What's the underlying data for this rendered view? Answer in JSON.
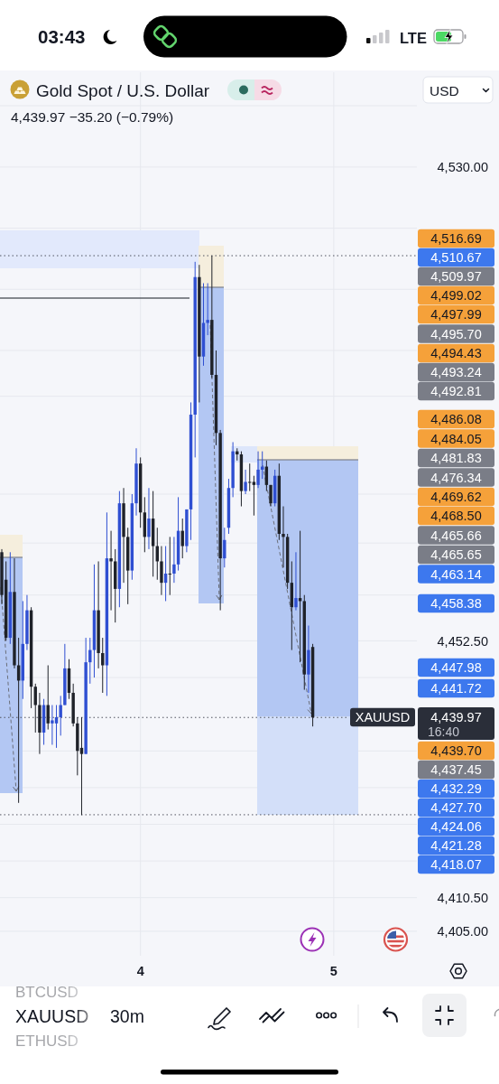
{
  "chart_data": {
    "type": "candlestick",
    "title": "Gold Spot / U.S. Dollar",
    "subtitle": "4,439.97 −35.20 (−0.79%)",
    "categories": [
      null,
      null,
      null,
      null,
      null,
      null,
      null,
      null,
      null,
      null,
      null,
      null,
      null,
      null,
      null,
      null,
      null,
      null,
      null,
      null,
      null,
      null,
      null,
      null,
      null,
      null,
      null,
      null,
      null,
      null,
      null,
      null,
      null,
      "4",
      null,
      null,
      null,
      null,
      null,
      null,
      null,
      null,
      null,
      null,
      null,
      null,
      null,
      null,
      null,
      null,
      null,
      null,
      null,
      null,
      null,
      null,
      null,
      null,
      null,
      null,
      null,
      null,
      null,
      null,
      null,
      null,
      null,
      null,
      null,
      null,
      null,
      null,
      null,
      null,
      null,
      null,
      null,
      null,
      null,
      "5",
      null,
      null,
      null,
      null,
      null,
      null,
      null,
      null,
      null,
      null,
      null,
      null,
      null,
      null,
      null,
      null,
      null,
      null,
      null,
      null
    ],
    "ohlc": [
      [
        4467,
        4467.5,
        4458.5,
        4460
      ],
      [
        4462.5,
        4465.5,
        4452.5,
        4453
      ],
      [
        4453,
        4467,
        4452,
        4460.5
      ],
      [
        4460.5,
        4466,
        4448,
        4448.5
      ],
      [
        4448.5,
        4453,
        4426,
        4446
      ],
      [
        4446,
        4459,
        4443,
        4452
      ],
      [
        4452,
        4460,
        4451,
        4457.5
      ],
      [
        4457.5,
        4458,
        4441.5,
        4445
      ],
      [
        4445,
        4445.5,
        4437.5,
        4442
      ],
      [
        4442,
        4444,
        4434,
        4437.5
      ],
      [
        4437.5,
        4443,
        4435.5,
        4442
      ],
      [
        4442,
        4448.5,
        4438,
        4439
      ],
      [
        4439,
        4442,
        4435.5,
        4439.5
      ],
      [
        4439,
        4442,
        4435,
        4440
      ],
      [
        4440,
        4443.5,
        4437,
        4442
      ],
      [
        4442,
        4452,
        4442,
        4448
      ],
      [
        4448,
        4449.5,
        4443,
        4444
      ],
      [
        4444,
        4445.5,
        4438.5,
        4439
      ],
      [
        4439,
        4440,
        4430.5,
        4434.5
      ],
      [
        4435,
        4440,
        4424,
        4434
      ],
      [
        4434,
        4453,
        4434,
        4449
      ],
      [
        4449,
        4453,
        4445.5,
        4451
      ],
      [
        4451,
        4465,
        4446.5,
        4457.5
      ],
      [
        4457.5,
        4465.5,
        4448,
        4450.5
      ],
      [
        4450.5,
        4453,
        4444,
        4448.5
      ],
      [
        4448.5,
        4473.5,
        4443.5,
        4466
      ],
      [
        4466,
        4470.5,
        4457.5,
        4465.5
      ],
      [
        4465.5,
        4467.5,
        4455.5,
        4461
      ],
      [
        4461,
        4477,
        4458,
        4475
      ],
      [
        4475,
        4477.5,
        4462,
        4469.5
      ],
      [
        4469.5,
        4471,
        4458.5,
        4464
      ],
      [
        4464,
        4476.5,
        4462.5,
        4475
      ],
      [
        4475,
        4484,
        4473,
        4481.5
      ],
      [
        4481.5,
        4482.5,
        4471,
        4473.5
      ],
      [
        4473.5,
        4476,
        4467,
        4469.5
      ],
      [
        4469.5,
        4477.5,
        4467.5,
        4472.5
      ],
      [
        4472.5,
        4477,
        4463,
        4468
      ],
      [
        4468,
        4471,
        4462.5,
        4465.5
      ],
      [
        4465.5,
        4468,
        4460,
        4462
      ],
      [
        4462,
        4468,
        4459,
        4463.5
      ],
      [
        4463.5,
        4469.5,
        4460,
        4463.5
      ],
      [
        4463.5,
        4469.5,
        4462,
        4465
      ],
      [
        4465,
        4476,
        4464,
        4470.5
      ],
      [
        4470.5,
        4472.5,
        4466,
        4468
      ],
      [
        4468,
        4474,
        4467,
        4474
      ],
      [
        4474,
        4491.5,
        4469,
        4489.5
      ],
      [
        4489.5,
        4514.5,
        4482.5,
        4512
      ],
      [
        4512,
        4514,
        4491.5,
        4499
      ],
      [
        4499,
        4511,
        4497.5,
        4504.5
      ],
      [
        4504.5,
        4511,
        4502.5,
        4505
      ],
      [
        4505,
        4515.5,
        4495.5,
        4496
      ],
      [
        4496,
        4500,
        4484.5,
        4486.5
      ],
      [
        4486.5,
        4487,
        4457.5,
        4466
      ],
      [
        4466,
        4471,
        4464.5,
        4469
      ],
      [
        4471,
        4479,
        4470,
        4477.5
      ],
      [
        4477.5,
        4485,
        4476,
        4483.5
      ],
      [
        4483.5,
        4484,
        4482,
        4483
      ],
      [
        4483,
        4483.5,
        4474.5,
        4477
      ],
      [
        4477,
        4480.5,
        4476.5,
        4478.5
      ],
      [
        4478.5,
        4481.5,
        4477,
        4478.5
      ],
      [
        4478.5,
        4479.5,
        4473,
        4478
      ],
      [
        4478,
        4483.5,
        4477.5,
        4480.5
      ],
      [
        4480.5,
        4483.5,
        4479,
        4481
      ],
      [
        4481,
        4482,
        4477,
        4478
      ],
      [
        4478,
        4478,
        4474.5,
        4475
      ],
      [
        4475,
        4480.5,
        4474.5,
        4479.5
      ],
      [
        4479.5,
        4481.5,
        4469,
        4470
      ],
      [
        4470,
        4474.5,
        4464.5,
        4469.5
      ],
      [
        4469.5,
        4470,
        4461,
        4462
      ],
      [
        4462,
        4465.5,
        4451,
        4458
      ],
      [
        4458,
        4467,
        4457.5,
        4459.5
      ],
      [
        4459.5,
        4470.5,
        4449,
        4459
      ],
      [
        4459,
        4460,
        4444.5,
        4447
      ],
      [
        4447,
        4455,
        4444,
        4451
      ],
      [
        4451.5,
        4452,
        4438.5,
        4439.97
      ],
      null,
      null,
      null,
      null,
      null,
      null,
      null,
      null,
      null,
      null,
      null,
      null,
      null,
      null,
      null,
      null,
      null,
      null,
      null,
      null,
      null,
      null,
      null,
      null,
      null
    ],
    "colors": [
      "#1f2229",
      "#1f2229",
      "#2f4fd2",
      "#1f2229",
      "#1f2229",
      "#2f4fd2",
      "#2f4fd2",
      "#1f2229",
      "#1f2229",
      "#1f2229",
      "#2f4fd2",
      "#1f2229",
      "#2f4fd2",
      "#2f4fd2",
      "#2f4fd2",
      "#2f4fd2",
      "#1f2229",
      "#1f2229",
      "#1f2229",
      "#1f2229",
      "#2f4fd2",
      "#2f4fd2",
      "#2f4fd2",
      "#1f2229",
      "#1f2229",
      "#2f4fd2",
      "#1f2229",
      "#1f2229",
      "#2f4fd2",
      "#1f2229",
      "#1f2229",
      "#2f4fd2",
      "#2f4fd2",
      "#1f2229",
      "#1f2229",
      "#2f4fd2",
      "#1f2229",
      "#1f2229",
      "#1f2229",
      "#2f4fd2",
      "#1f2229",
      "#2f4fd2",
      "#2f4fd2",
      "#1f2229",
      "#2f4fd2",
      "#2f4fd2",
      "#2f4fd2",
      "#1f2229",
      "#2f4fd2",
      "#2f4fd2",
      "#1f2229",
      "#1f2229",
      "#1f2229",
      "#2f4fd2",
      "#2f4fd2",
      "#2f4fd2",
      "#1f2229",
      "#1f2229",
      "#2f4fd2",
      "#1f2229",
      "#1f2229",
      "#2f4fd2",
      "#2f4fd2",
      "#1f2229",
      "#1f2229",
      "#2f4fd2",
      "#1f2229",
      "#1f2229",
      "#1f2229",
      "#1f2229",
      "#2f4fd2",
      "#1f2229",
      "#1f2229",
      "#2f4fd2",
      "#1f2229",
      null,
      null,
      null,
      null,
      null,
      null,
      null,
      null,
      null,
      null,
      null,
      null,
      null,
      null,
      null,
      null,
      null,
      null,
      null,
      null,
      null,
      null,
      null,
      null,
      null
    ],
    "ylim": [
      4401,
      4545.5
    ],
    "yticks": [
      {
        "value": 4530,
        "label": "4,530.00"
      },
      {
        "value": 4520,
        "label": null
      },
      {
        "value": 4510,
        "label": null
      },
      {
        "value": 4500,
        "label": null
      },
      {
        "value": 4492.5,
        "label": null
      },
      {
        "value": 4476.5,
        "label": null
      },
      {
        "value": 4468.5,
        "label": null
      },
      {
        "value": 4460,
        "label": null
      },
      {
        "value": 4452.5,
        "label": "4,452.50"
      },
      {
        "value": 4446.5,
        "label": null
      },
      {
        "value": 4434.5,
        "label": null
      },
      {
        "value": 4428.5,
        "label": null
      },
      {
        "value": 4422.5,
        "label": null
      },
      {
        "value": 4416.5,
        "label": null
      },
      {
        "value": 4410.5,
        "label": "4,410.50"
      },
      {
        "value": 4405,
        "label": "4,405.00"
      }
    ],
    "grid": true,
    "ref_lines": [
      {
        "axis": "y",
        "value": 4515.5,
        "color": "#50535e",
        "line_style": "dotted"
      },
      {
        "axis": "y",
        "value": 4439.97,
        "color": "#50535e",
        "line_style": "dotted"
      },
      {
        "axis": "y",
        "value": 4424.06,
        "color": "#50535e",
        "line_style": "dotted"
      }
    ],
    "annotations": [
      "03:43",
      "LTE",
      "USD",
      "BTCUSD",
      "XAUUSD",
      "ETHUSD",
      "30m",
      "4,516.69",
      "4,510.67",
      "4,509.97",
      "4,499.02",
      "4,497.99",
      "4,495.70",
      "4,494.43",
      "4,493.24",
      "4,492.81",
      "4,486.08",
      "4,484.05",
      "4,481.83",
      "4,476.34",
      "4,469.62",
      "4,468.50",
      "4,465.66",
      "4,465.65",
      "4,463.14",
      "4,458.38",
      "4,447.98",
      "4,441.72",
      "4,439.97",
      "16:40",
      "XAUUSD",
      "4,439.70",
      "4,437.45",
      "4,432.29",
      "4,427.70",
      "4,424.06",
      "4,421.28",
      "4,418.07"
    ]
  }
}
